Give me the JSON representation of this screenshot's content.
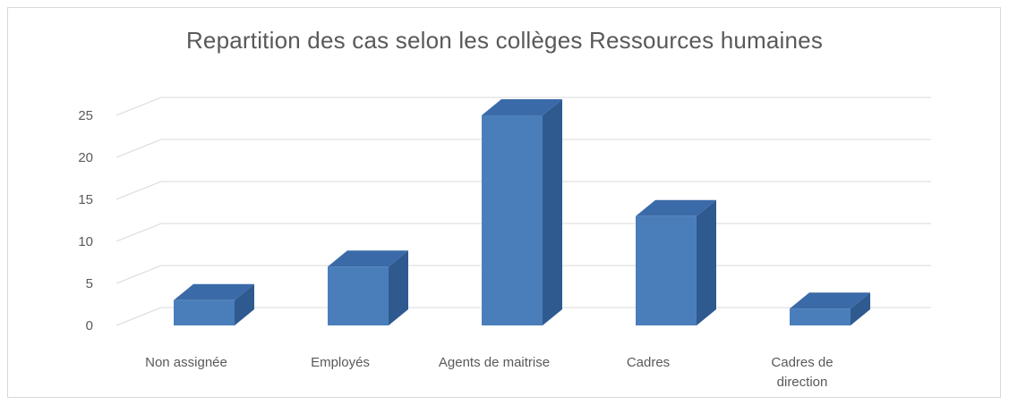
{
  "chart_data": {
    "type": "bar",
    "title": "Repartition des cas selon les collèges Ressources humaines",
    "categories": [
      "Non assignée",
      "Employés",
      "Agents de maitrise",
      "Cadres",
      "Cadres de direction"
    ],
    "category_lines": [
      [
        "Non assignée"
      ],
      [
        "Employés"
      ],
      [
        "Agents de maitrise"
      ],
      [
        "Cadres"
      ],
      [
        "Cadres de",
        "direction"
      ]
    ],
    "values": [
      3,
      7,
      25,
      13,
      2
    ],
    "ylim": [
      0,
      25
    ],
    "yticks": [
      0,
      5,
      10,
      15,
      20,
      25
    ],
    "xlabel": "",
    "ylabel": "",
    "grid": true,
    "style": "3d-column",
    "colors": {
      "front": "#4a7ebb",
      "side": "#2f5a8f",
      "top": "#3a6aa8",
      "grid": "#d9d9d9",
      "text": "#595959"
    }
  }
}
